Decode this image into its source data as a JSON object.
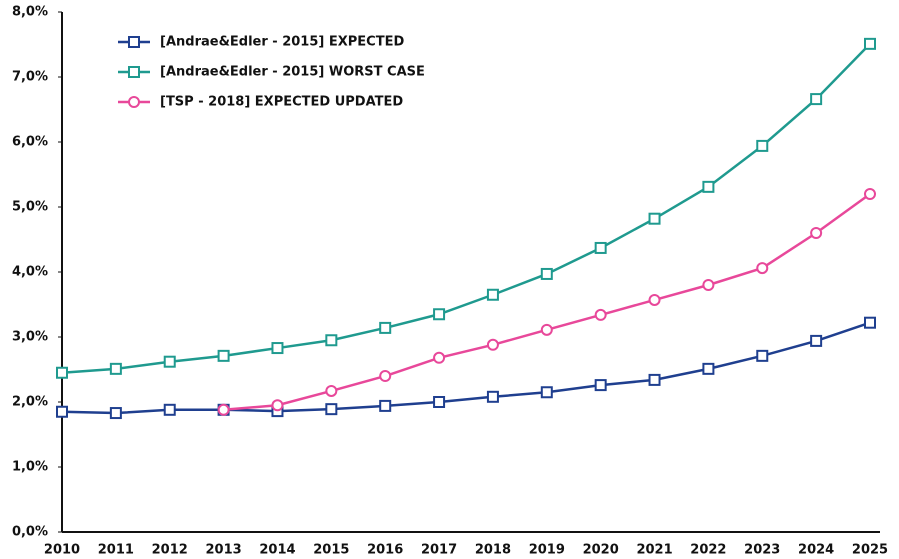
{
  "chart_data": {
    "type": "line",
    "categories": [
      "2010",
      "2011",
      "2012",
      "2013",
      "2014",
      "2015",
      "2016",
      "2017",
      "2018",
      "2019",
      "2020",
      "2021",
      "2022",
      "2023",
      "2024",
      "2025"
    ],
    "series": [
      {
        "name": "[Andrae&Edler - 2015] EXPECTED",
        "color": "#1f3f8f",
        "marker": "square",
        "values": [
          1.85,
          1.83,
          1.88,
          1.88,
          1.86,
          1.89,
          1.94,
          2.0,
          2.08,
          2.15,
          2.26,
          2.34,
          2.51,
          2.71,
          2.94,
          3.22
        ]
      },
      {
        "name": "[Andrae&Edler - 2015] WORST CASE",
        "color": "#1f9a8f",
        "marker": "square",
        "values": [
          2.45,
          2.51,
          2.62,
          2.71,
          2.83,
          2.95,
          3.14,
          3.35,
          3.65,
          3.97,
          4.37,
          4.82,
          5.31,
          5.94,
          6.66,
          7.51
        ]
      },
      {
        "name": "[TSP - 2018] EXPECTED UPDATED",
        "color": "#e8489a",
        "marker": "circle",
        "values": [
          null,
          null,
          null,
          1.88,
          1.95,
          2.17,
          2.4,
          2.68,
          2.88,
          3.11,
          3.34,
          3.57,
          3.8,
          4.06,
          4.6,
          5.2
        ]
      }
    ],
    "ylim": [
      0,
      8
    ],
    "yticks": [
      {
        "value": 0,
        "label": "0,0%"
      },
      {
        "value": 1,
        "label": "1,0%"
      },
      {
        "value": 2,
        "label": "2,0%"
      },
      {
        "value": 3,
        "label": "3,0%"
      },
      {
        "value": 4,
        "label": "4,0%"
      },
      {
        "value": 5,
        "label": "5,0%"
      },
      {
        "value": 6,
        "label": "6,0%"
      },
      {
        "value": 7,
        "label": "7,0%"
      },
      {
        "value": 8,
        "label": "8,0%"
      }
    ],
    "grid": false,
    "legend": "top-left"
  }
}
